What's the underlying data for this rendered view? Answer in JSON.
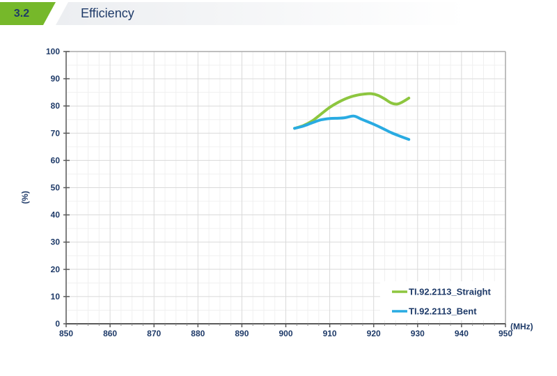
{
  "header": {
    "section_number": "3.2",
    "title": "Efficiency"
  },
  "colors": {
    "accent_green": "#76b82a",
    "navy_text": "#1e3a68",
    "header_bar_gradient_start": "#eceef1",
    "grid_major": "#d9d9d9",
    "grid_minor": "#f0f0f0",
    "frame_light": "#a9a9a9",
    "axis_dark": "#595959",
    "series_straight": "#8dc63f",
    "series_bent": "#29abe2",
    "legend_bg": "#ffffff"
  },
  "chart_data": {
    "type": "line",
    "title": "",
    "xlabel": "(MHz)",
    "ylabel": "(%)",
    "xlim": [
      850,
      950
    ],
    "ylim": [
      0,
      100
    ],
    "x_tick_step": 10,
    "x_minor_step": 2.5,
    "y_tick_step": 10,
    "y_minor_step": 5,
    "grid": true,
    "legend_position": "bottom-right",
    "series": [
      {
        "name": "TI.92.2113_Straight",
        "color": "#8dc63f",
        "points": [
          [
            902,
            71.8
          ],
          [
            904,
            72.8
          ],
          [
            906,
            74.5
          ],
          [
            908,
            77.0
          ],
          [
            910,
            79.5
          ],
          [
            912,
            81.4
          ],
          [
            914,
            82.9
          ],
          [
            916,
            83.9
          ],
          [
            918,
            84.4
          ],
          [
            919.5,
            84.5
          ],
          [
            921,
            83.9
          ],
          [
            922.5,
            82.6
          ],
          [
            924,
            81.1
          ],
          [
            925.3,
            80.7
          ],
          [
            926.6,
            81.5
          ],
          [
            928,
            82.9
          ]
        ]
      },
      {
        "name": "TI.92.2113_Bent",
        "color": "#29abe2",
        "points": [
          [
            902,
            71.8
          ],
          [
            904,
            72.6
          ],
          [
            906,
            73.8
          ],
          [
            908,
            74.9
          ],
          [
            910,
            75.4
          ],
          [
            912,
            75.5
          ],
          [
            913.5,
            75.7
          ],
          [
            915.5,
            76.3
          ],
          [
            917,
            75.3
          ],
          [
            918.5,
            74.3
          ],
          [
            920,
            73.3
          ],
          [
            922,
            71.8
          ],
          [
            924,
            70.2
          ],
          [
            926,
            68.9
          ],
          [
            928,
            67.7
          ]
        ]
      }
    ]
  }
}
